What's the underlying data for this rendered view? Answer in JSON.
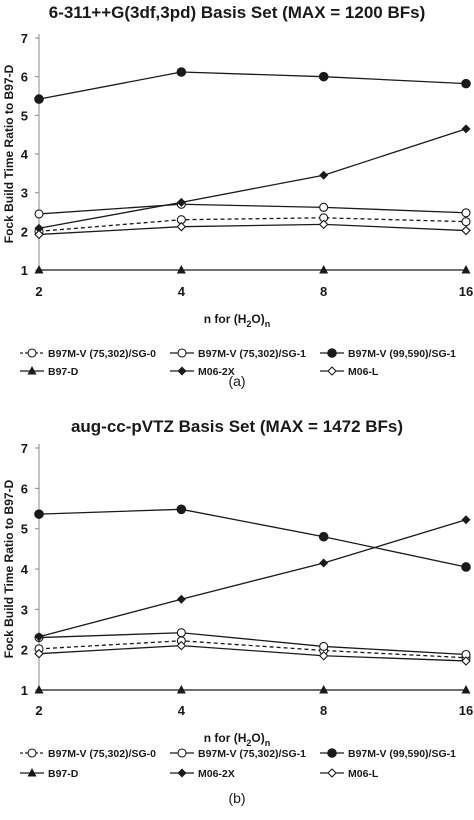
{
  "chart_data": [
    {
      "type": "line",
      "title": "6-311++G(3df,3pd) Basis Set (MAX = 1200 BFs)",
      "ylabel": "Fock Build Time Ratio to B97-D",
      "xlabel": "n for (H2O)n",
      "xlabel_main": "n for (H",
      "xlabel_sub1": "2",
      "xlabel_mid": "O)",
      "xlabel_sub2": "n",
      "categories": [
        "2",
        "4",
        "8",
        "16"
      ],
      "ylim": [
        1,
        7
      ],
      "yticks": [
        "1",
        "2",
        "3",
        "4",
        "5",
        "6",
        "7"
      ],
      "caption": "(a)",
      "series": [
        {
          "name": "B97M-V (75,302)/SG-0",
          "marker": "open-circle",
          "dash": true,
          "values": [
            2.0,
            2.3,
            2.35,
            2.25
          ]
        },
        {
          "name": "B97M-V (75,302)/SG-1",
          "marker": "open-circle",
          "dash": false,
          "values": [
            2.45,
            2.7,
            2.62,
            2.48
          ]
        },
        {
          "name": "B97M-V (99,590)/SG-1",
          "marker": "filled-circle",
          "dash": false,
          "values": [
            5.42,
            6.12,
            6.0,
            5.82
          ]
        },
        {
          "name": "B97-D",
          "marker": "filled-triangle",
          "dash": false,
          "values": [
            1.0,
            1.0,
            1.0,
            1.0
          ]
        },
        {
          "name": "M06-2X",
          "marker": "filled-diamond",
          "dash": false,
          "values": [
            2.08,
            2.75,
            3.45,
            4.65
          ]
        },
        {
          "name": "M06-L",
          "marker": "open-diamond",
          "dash": false,
          "values": [
            1.92,
            2.12,
            2.18,
            2.02
          ]
        }
      ]
    },
    {
      "type": "line",
      "title": "aug-cc-pVTZ Basis Set (MAX = 1472 BFs)",
      "ylabel": "Fock Build Time Ratio to B97-D",
      "xlabel": "n for (H2O)n",
      "xlabel_main": "n for (H",
      "xlabel_sub1": "2",
      "xlabel_mid": "O)",
      "xlabel_sub2": "n",
      "categories": [
        "2",
        "4",
        "8",
        "16"
      ],
      "ylim": [
        1,
        7
      ],
      "yticks": [
        "1",
        "2",
        "3",
        "4",
        "5",
        "6",
        "7"
      ],
      "caption": "(b)",
      "series": [
        {
          "name": "B97M-V (75,302)/SG-0",
          "marker": "open-circle",
          "dash": true,
          "values": [
            2.02,
            2.22,
            1.98,
            1.8
          ]
        },
        {
          "name": "B97M-V (75,302)/SG-1",
          "marker": "open-circle",
          "dash": false,
          "values": [
            2.3,
            2.42,
            2.08,
            1.88
          ]
        },
        {
          "name": "B97M-V (99,590)/SG-1",
          "marker": "filled-circle",
          "dash": false,
          "values": [
            5.36,
            5.48,
            4.8,
            4.05
          ]
        },
        {
          "name": "B97-D",
          "marker": "filled-triangle",
          "dash": false,
          "values": [
            1.0,
            1.0,
            1.0,
            1.0
          ]
        },
        {
          "name": "M06-2X",
          "marker": "filled-diamond",
          "dash": false,
          "values": [
            2.32,
            3.25,
            4.15,
            5.22
          ]
        },
        {
          "name": "M06-L",
          "marker": "open-diamond",
          "dash": false,
          "values": [
            1.9,
            2.1,
            1.85,
            1.72
          ]
        }
      ]
    }
  ]
}
